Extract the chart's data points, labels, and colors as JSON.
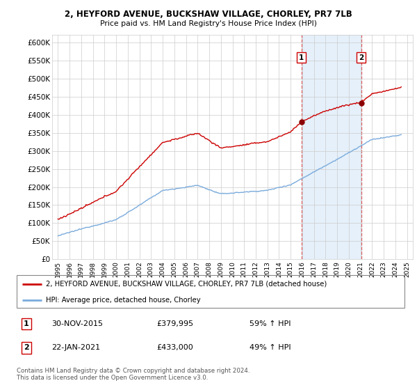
{
  "title_line1": "2, HEYFORD AVENUE, BUCKSHAW VILLAGE, CHORLEY, PR7 7LB",
  "title_line2": "Price paid vs. HM Land Registry's House Price Index (HPI)",
  "ylabel_ticks": [
    "£0",
    "£50K",
    "£100K",
    "£150K",
    "£200K",
    "£250K",
    "£300K",
    "£350K",
    "£400K",
    "£450K",
    "£500K",
    "£550K",
    "£600K"
  ],
  "ytick_values": [
    0,
    50000,
    100000,
    150000,
    200000,
    250000,
    300000,
    350000,
    400000,
    450000,
    500000,
    550000,
    600000
  ],
  "ylim": [
    0,
    620000
  ],
  "sale1_date": "30-NOV-2015",
  "sale1_price": 379995,
  "sale1_label": "1",
  "sale1_hpi_pct": "59% ↑ HPI",
  "sale2_date": "22-JAN-2021",
  "sale2_price": 433000,
  "sale2_label": "2",
  "sale2_hpi_pct": "49% ↑ HPI",
  "sale1_x": 2015.92,
  "sale2_x": 2021.06,
  "legend_line1": "2, HEYFORD AVENUE, BUCKSHAW VILLAGE, CHORLEY, PR7 7LB (detached house)",
  "legend_line2": "HPI: Average price, detached house, Chorley",
  "footer": "Contains HM Land Registry data © Crown copyright and database right 2024.\nThis data is licensed under the Open Government Licence v3.0.",
  "hpi_color": "#7aabdc",
  "price_color": "#cc0000",
  "sale_marker_color": "#8b0000",
  "vline_color": "#e06060",
  "shade_color": "#daeaf8",
  "background_color": "#ffffff",
  "grid_color": "#cccccc"
}
